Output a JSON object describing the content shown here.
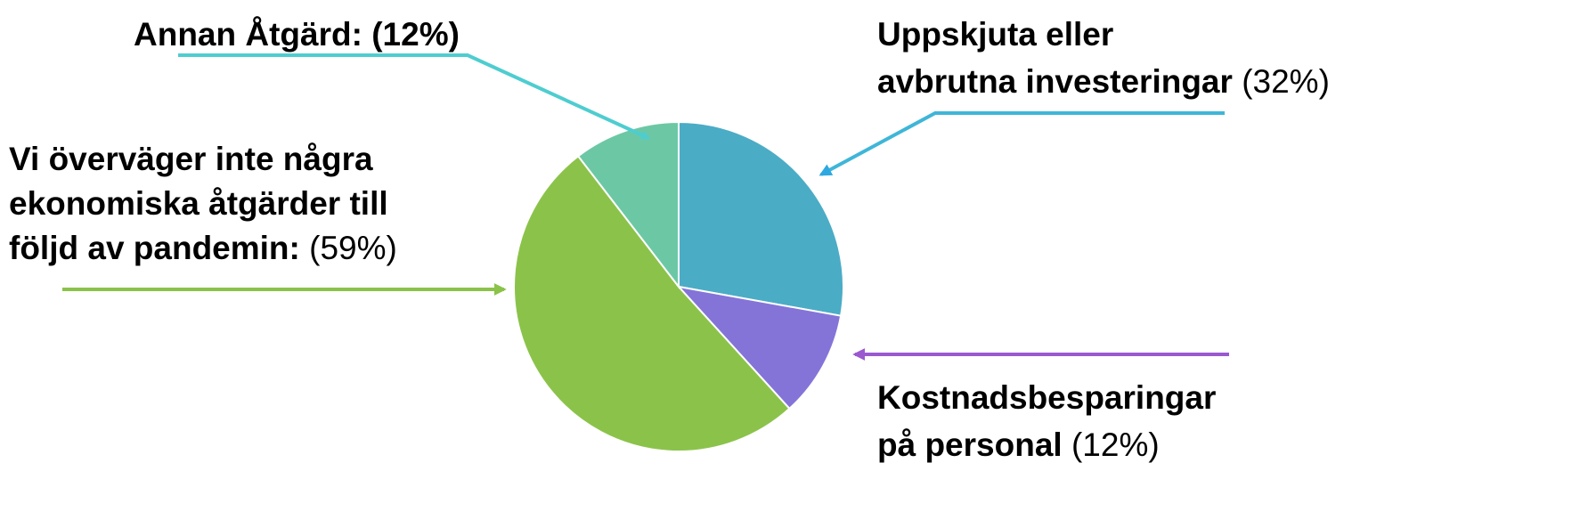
{
  "chart_data": {
    "type": "pie",
    "categories": [
      "Uppskjuta eller\navbrutna investeringar",
      "Kostnadsbesparingar\npå personal",
      "Vi överväger inte några\nekonomiska åtgärder till\nföljd av pandemin:",
      "Annan Åtgärd:"
    ],
    "values": [
      32,
      12,
      59,
      12
    ],
    "value_labels": [
      "(32%)",
      "(12%)",
      "(59%)",
      "(12%)"
    ],
    "colors": [
      "#4BACC6",
      "#8474D8",
      "#8BC34A",
      "#6CC8A4"
    ]
  }
}
